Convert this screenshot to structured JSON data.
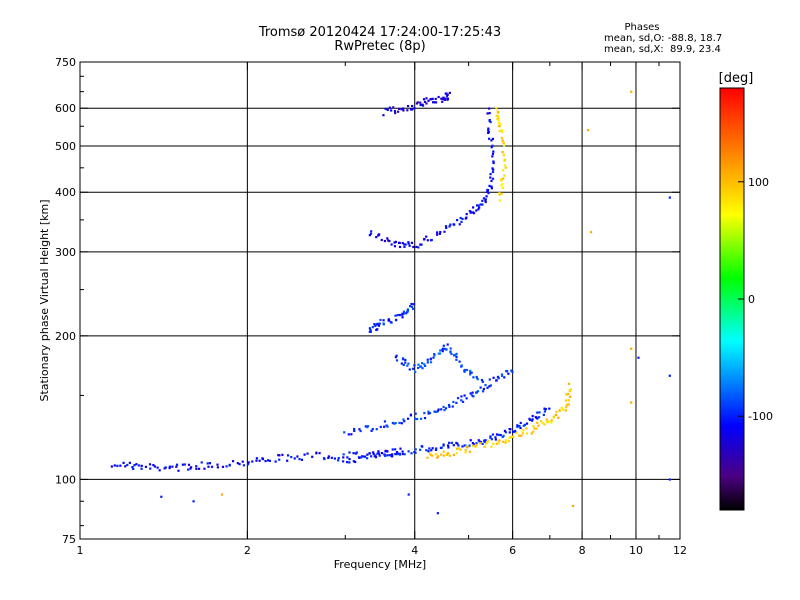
{
  "title": "Tromsø 20120424 17:24:00-17:25:43",
  "subtitle": "RwPretec (8p)",
  "stats": {
    "heading": "Phases",
    "o_mode": "mean, sd,O: -88.8, 18.7",
    "x_mode": "mean, sd,X:  89.9, 23.4"
  },
  "chart_data": {
    "type": "scatter",
    "xlabel": "Frequency [MHz]",
    "ylabel": "Stationary phase Virtual Height [km]",
    "xscale": "log",
    "yscale": "log",
    "xlim": [
      1,
      12
    ],
    "ylim": [
      75,
      750
    ],
    "xticks": [
      1,
      2,
      4,
      6,
      8,
      10,
      12
    ],
    "xtick_labels": [
      "1",
      "2",
      "4",
      "6",
      "8",
      "10",
      "12"
    ],
    "xgrid": [
      2,
      4,
      6,
      8,
      10
    ],
    "yticks": [
      75,
      100,
      200,
      300,
      400,
      500,
      600,
      750
    ],
    "ytick_labels": [
      "75",
      "100",
      "200",
      "300",
      "400",
      "500",
      "600",
      "750"
    ],
    "ygrid": [
      100,
      200,
      300,
      400,
      500,
      600
    ],
    "grid": true,
    "colorbar": {
      "label": "[deg]",
      "range": [
        -180,
        180
      ],
      "ticks": [
        100,
        0,
        -100
      ],
      "tick_labels": [
        "100",
        "0",
        "-100"
      ]
    },
    "traces": [
      {
        "name": "",
        "phase": -110,
        "points": [
          [
            1.15,
            108
          ],
          [
            1.3,
            106
          ],
          [
            1.5,
            106
          ],
          [
            1.7,
            107
          ],
          [
            2.0,
            109
          ],
          [
            2.3,
            111
          ],
          [
            2.7,
            112
          ],
          [
            3.1,
            110
          ],
          [
            3.5,
            113
          ],
          [
            3.8,
            115
          ]
        ]
      },
      {
        "name": "",
        "phase": -100,
        "points": [
          [
            3.0,
            112
          ],
          [
            3.5,
            113
          ],
          [
            4.0,
            115
          ],
          [
            4.5,
            117
          ],
          [
            5.0,
            119
          ],
          [
            5.5,
            122
          ],
          [
            6.0,
            127
          ],
          [
            6.5,
            134
          ],
          [
            7.0,
            140
          ]
        ]
      },
      {
        "name": "",
        "phase": 95,
        "points": [
          [
            4.2,
            112
          ],
          [
            4.7,
            114
          ],
          [
            5.2,
            117
          ],
          [
            5.8,
            121
          ],
          [
            6.4,
            126
          ],
          [
            7.0,
            133
          ],
          [
            7.5,
            142
          ],
          [
            7.6,
            158
          ]
        ]
      },
      {
        "name": "",
        "phase": -95,
        "points": [
          [
            3.0,
            125
          ],
          [
            3.5,
            130
          ],
          [
            4.0,
            135
          ],
          [
            4.5,
            140
          ],
          [
            5.0,
            150
          ],
          [
            5.5,
            160
          ],
          [
            6.0,
            170
          ]
        ]
      },
      {
        "name": "",
        "phase": -100,
        "points": [
          [
            3.3,
            205
          ],
          [
            3.5,
            213
          ],
          [
            3.8,
            220
          ],
          [
            4.0,
            235
          ]
        ]
      },
      {
        "name": "",
        "phase": -110,
        "points": [
          [
            3.3,
            330
          ],
          [
            3.7,
            310
          ],
          [
            4.0,
            310
          ],
          [
            4.5,
            330
          ],
          [
            5.0,
            360
          ],
          [
            5.3,
            380
          ],
          [
            5.5,
            420
          ],
          [
            5.5,
            500
          ],
          [
            5.4,
            600
          ]
        ]
      },
      {
        "name": "",
        "phase": -120,
        "points": [
          [
            3.5,
            590
          ],
          [
            3.9,
            600
          ],
          [
            4.2,
            620
          ],
          [
            4.5,
            630
          ],
          [
            4.6,
            640
          ]
        ]
      },
      {
        "name": "",
        "phase": 90,
        "points": [
          [
            5.7,
            390
          ],
          [
            5.8,
            460
          ],
          [
            5.7,
            540
          ],
          [
            5.6,
            600
          ]
        ]
      },
      {
        "name": "",
        "phase": -90,
        "points": [
          [
            3.7,
            180
          ],
          [
            4.0,
            170
          ],
          [
            4.3,
            180
          ],
          [
            4.6,
            190
          ],
          [
            4.9,
            170
          ],
          [
            5.3,
            160
          ]
        ]
      }
    ],
    "scatter_points": [
      [
        1.4,
        92
      ],
      [
        1.6,
        90
      ],
      [
        1.8,
        93
      ],
      [
        3.9,
        93
      ],
      [
        4.4,
        85
      ],
      [
        7.7,
        88
      ],
      [
        8.2,
        540
      ],
      [
        8.3,
        330
      ],
      [
        9.8,
        650
      ],
      [
        9.8,
        188
      ],
      [
        9.8,
        145
      ],
      [
        10.1,
        180
      ],
      [
        11.5,
        390
      ],
      [
        11.5,
        100
      ],
      [
        11.5,
        165
      ]
    ]
  }
}
